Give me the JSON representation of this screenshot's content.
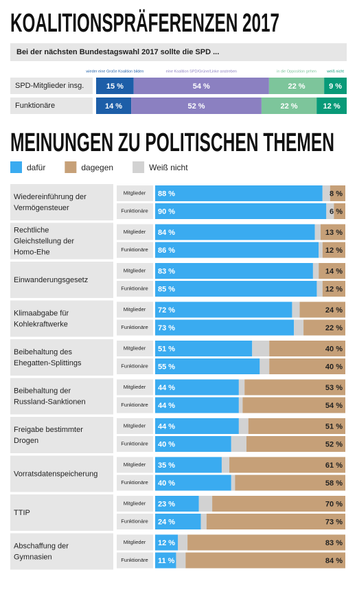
{
  "chart_data": [
    {
      "type": "stacked-bar-h",
      "title": "KOALITIONSPRÄFERENZEN 2017",
      "subtitle": "Bei der nächsten Bundestagswahl 2017 sollte die SPD ...",
      "categories": [
        "SPD-Mitglieder insg.",
        "Funktionäre"
      ],
      "series": [
        {
          "name": "wieder eine Große Koalition bilden",
          "color": "#1d5ea8",
          "values": [
            15,
            14
          ],
          "value_labels": [
            "15 %",
            "14 %"
          ]
        },
        {
          "name": "eine Koalition SPD/Grüne/Linke anstreben",
          "color": "#8b80c1",
          "values": [
            54,
            52
          ],
          "value_labels": [
            "54 %",
            "52 %"
          ]
        },
        {
          "name": "in die Opposition gehen",
          "color": "#7dc59b",
          "values": [
            22,
            22
          ],
          "value_labels": [
            "22 %",
            "22 %"
          ]
        },
        {
          "name": "weiß nicht",
          "color": "#089a78",
          "values": [
            9,
            12
          ],
          "value_labels": [
            "9 %",
            "12 %"
          ]
        }
      ]
    },
    {
      "type": "grouped-stacked-bar-h",
      "title": "MEINUNGEN ZU POLITISCHEN THEMEN",
      "topics": [
        "Wiedereinführung der Vermögensteuer",
        "Rechtliche Gleichstellung der Homo-Ehe",
        "Einwanderungsgesetz",
        "Klimaabgabe für Kohlekraftwerke",
        "Beibehaltung des Ehegatten-Splittings",
        "Beibehaltung der Russland-Sanktionen",
        "Freigabe bestimmter Drogen",
        "Vorratsdatenspeicherung",
        "TTIP",
        "Abschaffung der Gymnasien"
      ],
      "groups": [
        "Mitglieder",
        "Funktionäre"
      ],
      "series": [
        {
          "name": "dafür",
          "color": "#3aabf0",
          "values": [
            88,
            90,
            84,
            86,
            83,
            85,
            72,
            73,
            51,
            55,
            44,
            44,
            44,
            40,
            35,
            40,
            23,
            24,
            12,
            11
          ],
          "value_labels": [
            "88 %",
            "90 %",
            "84 %",
            "86 %",
            "83 %",
            "85 %",
            "72 %",
            "73 %",
            "51 %",
            "55 %",
            "44 %",
            "44 %",
            "44 %",
            "40 %",
            "35 %",
            "40 %",
            "23 %",
            "24 %",
            "12 %",
            "11 %"
          ]
        },
        {
          "name": "dagegen",
          "color": "#c6a078",
          "values": [
            8,
            6,
            13,
            12,
            14,
            12,
            24,
            22,
            40,
            40,
            53,
            54,
            51,
            52,
            61,
            58,
            70,
            73,
            83,
            84
          ],
          "value_labels": [
            "8 %",
            "6 %",
            "13 %",
            "12 %",
            "14 %",
            "12 %",
            "24 %",
            "22 %",
            "40 %",
            "40 %",
            "53 %",
            "54 %",
            "51 %",
            "52 %",
            "61 %",
            "58 %",
            "70 %",
            "73 %",
            "83 %",
            "84 %"
          ]
        },
        {
          "name": "Weiß nicht",
          "color": "#d2d2d2",
          "values": [
            4,
            4,
            3,
            2,
            3,
            3,
            4,
            5,
            9,
            5,
            3,
            2,
            5,
            8,
            4,
            2,
            7,
            3,
            5,
            5
          ]
        }
      ]
    }
  ]
}
